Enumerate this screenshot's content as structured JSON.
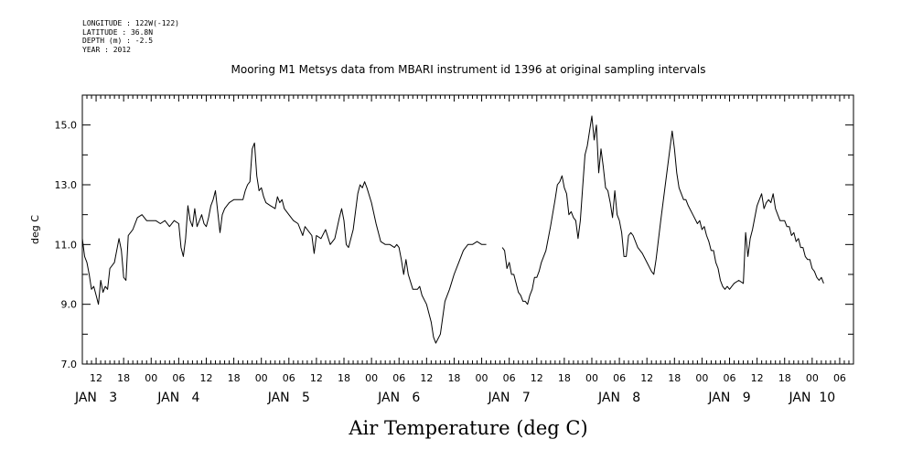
{
  "header": {
    "longitude": "LONGITUDE : 122W(-122)",
    "latitude": "LATITUDE : 36.8N",
    "depth": "DEPTH (m) : -2.5",
    "year": "YEAR : 2012"
  },
  "chart_data": {
    "type": "line",
    "title": "Mooring M1 Metsys data from MBARI instrument id 1396 at original sampling intervals",
    "xlabel": "Air Temperature (deg C)",
    "ylabel": "deg C",
    "ylim": [
      7.0,
      16.0
    ],
    "xlim_hours": [
      9,
      177
    ],
    "y_ticks": [
      7.0,
      9.0,
      11.0,
      13.0,
      15.0
    ],
    "y_tick_labels": [
      "7.0",
      "9.0",
      "11.0",
      "13.0",
      "15.0"
    ],
    "x_hour_ticks": [
      12,
      18,
      24,
      30,
      36,
      42,
      48,
      54,
      60,
      66,
      72,
      78,
      84,
      90,
      96,
      102,
      108,
      114,
      120,
      126,
      132,
      138,
      144,
      150,
      156,
      162,
      168,
      174
    ],
    "x_hour_tick_labels": [
      "12",
      "18",
      "00",
      "06",
      "12",
      "18",
      "00",
      "06",
      "12",
      "18",
      "00",
      "06",
      "12",
      "18",
      "00",
      "06",
      "12",
      "18",
      "00",
      "06",
      "12",
      "18",
      "00",
      "06",
      "12",
      "18",
      "00",
      "06"
    ],
    "day_labels": [
      {
        "hour": 12,
        "text": "JAN   3"
      },
      {
        "hour": 30,
        "text": "JAN   4"
      },
      {
        "hour": 54,
        "text": "JAN   5"
      },
      {
        "hour": 78,
        "text": "JAN   6"
      },
      {
        "hour": 102,
        "text": "JAN   7"
      },
      {
        "hour": 126,
        "text": "JAN   8"
      },
      {
        "hour": 150,
        "text": "JAN   9"
      },
      {
        "hour": 168,
        "text": "JAN  10"
      }
    ],
    "series": [
      {
        "segments": [
          [
            [
              9.0,
              11.2
            ],
            [
              9.5,
              10.6
            ],
            [
              10.0,
              10.4
            ],
            [
              10.5,
              10.0
            ],
            [
              11.0,
              9.5
            ],
            [
              11.5,
              9.6
            ],
            [
              12.0,
              9.3
            ],
            [
              12.5,
              9.0
            ],
            [
              13.0,
              9.8
            ],
            [
              13.5,
              9.4
            ],
            [
              14.0,
              9.6
            ],
            [
              14.5,
              9.5
            ],
            [
              15.0,
              10.2
            ],
            [
              16.0,
              10.4
            ],
            [
              17.0,
              11.2
            ],
            [
              17.5,
              10.8
            ],
            [
              18.0,
              9.9
            ],
            [
              18.5,
              9.8
            ],
            [
              19.0,
              11.3
            ],
            [
              20.0,
              11.5
            ],
            [
              21.0,
              11.9
            ],
            [
              22.0,
              12.0
            ],
            [
              23.0,
              11.8
            ],
            [
              24.0,
              11.8
            ],
            [
              25.0,
              11.8
            ],
            [
              26.0,
              11.7
            ],
            [
              27.0,
              11.8
            ],
            [
              28.0,
              11.6
            ],
            [
              29.0,
              11.8
            ],
            [
              30.0,
              11.7
            ],
            [
              30.5,
              10.9
            ],
            [
              31.0,
              10.6
            ],
            [
              31.5,
              11.2
            ],
            [
              32.0,
              12.3
            ],
            [
              32.5,
              11.8
            ],
            [
              33.0,
              11.6
            ],
            [
              33.5,
              12.2
            ],
            [
              34.0,
              11.6
            ],
            [
              34.5,
              11.8
            ],
            [
              35.0,
              12.0
            ],
            [
              35.5,
              11.7
            ],
            [
              36.0,
              11.6
            ],
            [
              36.5,
              11.9
            ],
            [
              37.0,
              12.3
            ],
            [
              37.5,
              12.5
            ],
            [
              38.0,
              12.8
            ],
            [
              38.5,
              12.1
            ],
            [
              39.0,
              11.4
            ],
            [
              39.5,
              12.0
            ],
            [
              40.0,
              12.2
            ],
            [
              41.0,
              12.4
            ],
            [
              42.0,
              12.5
            ],
            [
              43.0,
              12.5
            ],
            [
              44.0,
              12.5
            ],
            [
              44.5,
              12.8
            ],
            [
              45.0,
              13.0
            ],
            [
              45.5,
              13.1
            ],
            [
              46.0,
              14.2
            ],
            [
              46.5,
              14.4
            ],
            [
              47.0,
              13.3
            ],
            [
              47.5,
              12.8
            ],
            [
              48.0,
              12.9
            ],
            [
              48.5,
              12.6
            ],
            [
              49.0,
              12.4
            ],
            [
              50.0,
              12.3
            ],
            [
              51.0,
              12.2
            ],
            [
              51.5,
              12.6
            ],
            [
              52.0,
              12.4
            ],
            [
              52.5,
              12.5
            ],
            [
              53.0,
              12.2
            ],
            [
              54.0,
              12.0
            ],
            [
              55.0,
              11.8
            ],
            [
              56.0,
              11.7
            ],
            [
              57.0,
              11.3
            ],
            [
              57.5,
              11.6
            ],
            [
              58.0,
              11.5
            ],
            [
              59.0,
              11.3
            ],
            [
              59.5,
              10.7
            ],
            [
              60.0,
              11.3
            ],
            [
              61.0,
              11.2
            ],
            [
              62.0,
              11.5
            ],
            [
              63.0,
              11.0
            ],
            [
              64.0,
              11.2
            ],
            [
              65.0,
              11.9
            ],
            [
              65.5,
              12.2
            ],
            [
              66.0,
              11.8
            ],
            [
              66.5,
              11.0
            ],
            [
              67.0,
              10.9
            ],
            [
              68.0,
              11.5
            ],
            [
              69.0,
              12.7
            ],
            [
              69.5,
              13.0
            ],
            [
              70.0,
              12.9
            ],
            [
              70.5,
              13.1
            ],
            [
              71.0,
              12.9
            ],
            [
              72.0,
              12.4
            ],
            [
              73.0,
              11.7
            ],
            [
              74.0,
              11.1
            ],
            [
              75.0,
              11.0
            ],
            [
              76.0,
              11.0
            ],
            [
              77.0,
              10.9
            ],
            [
              77.5,
              11.0
            ],
            [
              78.0,
              10.9
            ],
            [
              78.5,
              10.5
            ],
            [
              79.0,
              10.0
            ],
            [
              79.5,
              10.5
            ],
            [
              80.0,
              10.0
            ],
            [
              81.0,
              9.5
            ],
            [
              82.0,
              9.5
            ],
            [
              82.5,
              9.6
            ],
            [
              83.0,
              9.3
            ],
            [
              84.0,
              9.0
            ],
            [
              85.0,
              8.4
            ],
            [
              85.5,
              7.9
            ],
            [
              86.0,
              7.7
            ],
            [
              87.0,
              8.0
            ],
            [
              88.0,
              9.1
            ],
            [
              89.0,
              9.5
            ],
            [
              90.0,
              10.0
            ],
            [
              91.0,
              10.4
            ],
            [
              92.0,
              10.8
            ],
            [
              93.0,
              11.0
            ],
            [
              94.0,
              11.0
            ],
            [
              95.0,
              11.1
            ],
            [
              96.0,
              11.0
            ],
            [
              97.0,
              11.0
            ]
          ],
          [
            [
              100.5,
              10.9
            ],
            [
              101.0,
              10.8
            ],
            [
              101.5,
              10.2
            ],
            [
              102.0,
              10.4
            ],
            [
              102.5,
              10.0
            ],
            [
              103.0,
              10.0
            ],
            [
              104.0,
              9.4
            ],
            [
              104.5,
              9.3
            ],
            [
              105.0,
              9.1
            ],
            [
              105.5,
              9.1
            ],
            [
              106.0,
              9.0
            ],
            [
              106.5,
              9.3
            ],
            [
              107.0,
              9.5
            ],
            [
              107.5,
              9.9
            ],
            [
              108.0,
              9.9
            ],
            [
              108.5,
              10.1
            ],
            [
              109.0,
              10.4
            ],
            [
              110.0,
              10.8
            ],
            [
              111.0,
              11.6
            ],
            [
              112.0,
              12.5
            ],
            [
              112.5,
              13.0
            ],
            [
              113.0,
              13.1
            ],
            [
              113.5,
              13.3
            ],
            [
              114.0,
              12.9
            ],
            [
              114.5,
              12.7
            ],
            [
              115.0,
              12.0
            ],
            [
              115.5,
              12.1
            ],
            [
              116.0,
              11.9
            ],
            [
              116.5,
              11.8
            ],
            [
              117.0,
              11.2
            ],
            [
              117.5,
              11.8
            ],
            [
              118.0,
              12.9
            ],
            [
              118.5,
              14.0
            ],
            [
              119.0,
              14.3
            ],
            [
              119.5,
              14.8
            ],
            [
              120.0,
              15.3
            ],
            [
              120.5,
              14.5
            ],
            [
              121.0,
              15.0
            ],
            [
              121.5,
              13.4
            ],
            [
              122.0,
              14.2
            ],
            [
              122.5,
              13.6
            ],
            [
              123.0,
              12.9
            ],
            [
              123.5,
              12.8
            ],
            [
              124.0,
              12.4
            ],
            [
              124.5,
              11.9
            ],
            [
              125.0,
              12.8
            ],
            [
              125.5,
              12.0
            ],
            [
              126.0,
              11.8
            ],
            [
              126.5,
              11.4
            ],
            [
              127.0,
              10.6
            ],
            [
              127.5,
              10.6
            ],
            [
              128.0,
              11.3
            ],
            [
              128.5,
              11.4
            ],
            [
              129.0,
              11.3
            ],
            [
              130.0,
              10.9
            ],
            [
              131.0,
              10.7
            ],
            [
              132.0,
              10.4
            ],
            [
              133.0,
              10.1
            ],
            [
              133.5,
              10.0
            ],
            [
              134.0,
              10.5
            ],
            [
              135.0,
              11.8
            ],
            [
              136.0,
              13.0
            ],
            [
              137.0,
              14.2
            ],
            [
              137.5,
              14.8
            ],
            [
              138.0,
              14.2
            ],
            [
              138.5,
              13.4
            ],
            [
              139.0,
              12.9
            ],
            [
              139.5,
              12.7
            ],
            [
              140.0,
              12.5
            ],
            [
              140.5,
              12.5
            ],
            [
              141.0,
              12.3
            ],
            [
              142.0,
              12.0
            ],
            [
              143.0,
              11.7
            ],
            [
              143.5,
              11.8
            ],
            [
              144.0,
              11.5
            ],
            [
              144.5,
              11.6
            ],
            [
              145.0,
              11.3
            ],
            [
              145.5,
              11.1
            ],
            [
              146.0,
              10.8
            ],
            [
              146.5,
              10.8
            ],
            [
              147.0,
              10.4
            ],
            [
              147.5,
              10.2
            ],
            [
              148.0,
              9.8
            ],
            [
              148.5,
              9.6
            ],
            [
              149.0,
              9.5
            ],
            [
              149.5,
              9.6
            ],
            [
              150.0,
              9.5
            ],
            [
              150.5,
              9.6
            ],
            [
              151.0,
              9.7
            ],
            [
              152.0,
              9.8
            ],
            [
              153.0,
              9.7
            ],
            [
              153.5,
              11.4
            ],
            [
              154.0,
              10.6
            ],
            [
              154.5,
              11.2
            ],
            [
              155.0,
              11.5
            ],
            [
              155.5,
              11.9
            ],
            [
              156.0,
              12.3
            ],
            [
              156.5,
              12.5
            ],
            [
              157.0,
              12.7
            ],
            [
              157.5,
              12.2
            ],
            [
              158.0,
              12.4
            ],
            [
              158.5,
              12.5
            ],
            [
              159.0,
              12.4
            ],
            [
              159.5,
              12.7
            ],
            [
              160.0,
              12.2
            ],
            [
              160.5,
              12.0
            ],
            [
              161.0,
              11.8
            ],
            [
              162.0,
              11.8
            ],
            [
              162.5,
              11.6
            ],
            [
              163.0,
              11.6
            ],
            [
              163.5,
              11.3
            ],
            [
              164.0,
              11.4
            ],
            [
              164.5,
              11.1
            ],
            [
              165.0,
              11.2
            ],
            [
              165.5,
              10.9
            ],
            [
              166.0,
              10.9
            ],
            [
              166.5,
              10.6
            ],
            [
              167.0,
              10.5
            ],
            [
              167.5,
              10.5
            ],
            [
              168.0,
              10.2
            ],
            [
              168.5,
              10.1
            ],
            [
              169.0,
              9.9
            ],
            [
              169.5,
              9.8
            ],
            [
              170.0,
              9.9
            ],
            [
              170.5,
              9.7
            ]
          ]
        ]
      }
    ]
  }
}
